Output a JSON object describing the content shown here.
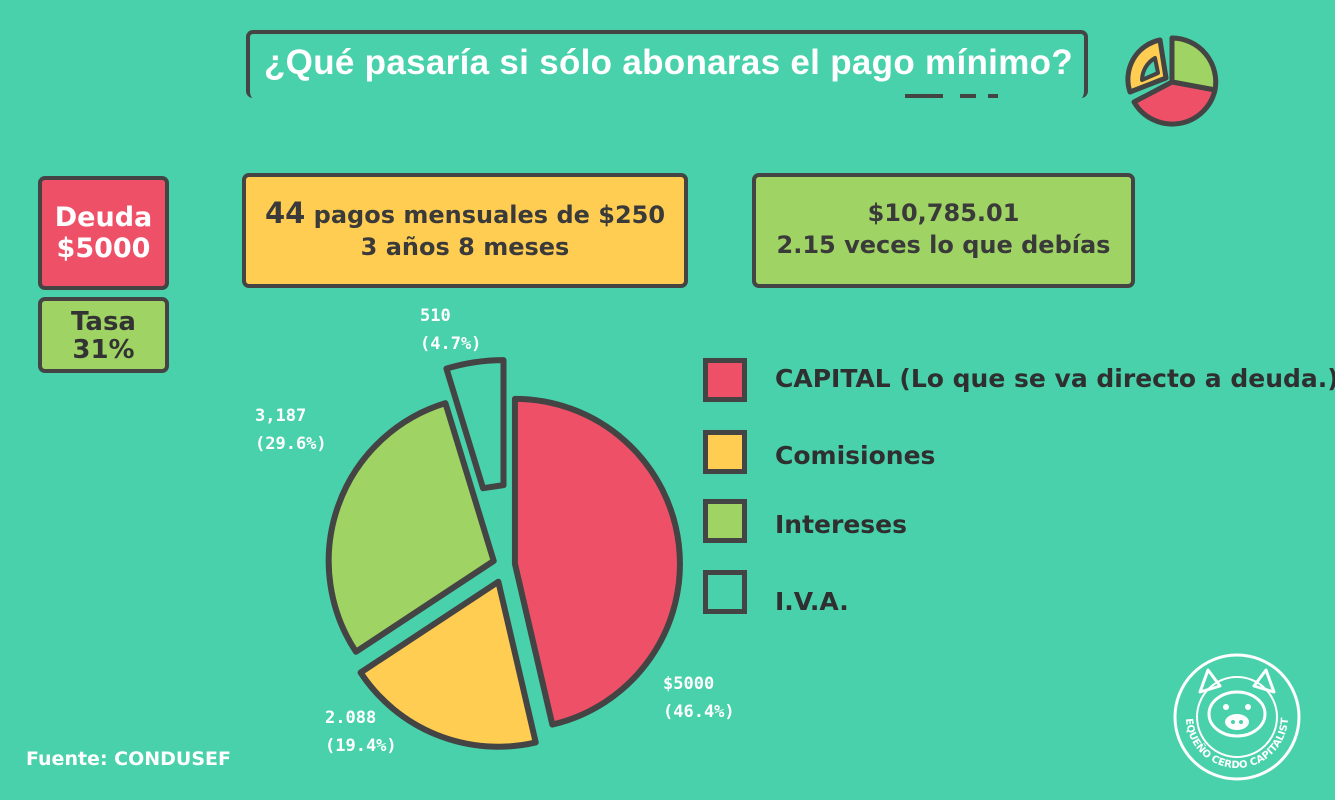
{
  "title": "¿Qué pasaría si sólo abonaras el pago mínimo?",
  "debt": {
    "label": "Deuda",
    "value": "$5000"
  },
  "rate": {
    "label": "Tasa",
    "value": "31%"
  },
  "payments": {
    "count": "44",
    "line1_rest": "pagos mensuales de $250",
    "line2": "3 años 8 meses"
  },
  "total": {
    "line1": "$10,785.01",
    "line2": "2.15 veces lo que debías"
  },
  "source": "Fuente: CONDUSEF",
  "logo_text": "PEQUEÑO CERDO CAPITALISTA",
  "colors": {
    "background": "#48d1ab",
    "capital": "#ee5167",
    "comisiones": "#ffcd51",
    "intereses": "#9fd464",
    "iva": "#48d1ab",
    "outline": "#444444"
  },
  "chart_data": {
    "type": "pie",
    "title": "",
    "slices": [
      {
        "name": "CAPITAL (Lo que se va directo a deuda.)",
        "value": 5000,
        "percent": 46.4,
        "value_label": "$5000",
        "percent_label": "(46.4%)"
      },
      {
        "name": "Comisiones",
        "value": 2088,
        "percent": 19.4,
        "value_label": "2.088",
        "percent_label": "(19.4%)"
      },
      {
        "name": "Intereses",
        "value": 3187,
        "percent": 29.6,
        "value_label": "3,187",
        "percent_label": "(29.6%)"
      },
      {
        "name": "I.V.A.",
        "value": 510,
        "percent": 4.7,
        "value_label": "510",
        "percent_label": "(4.7%)"
      }
    ],
    "legend_position": "right"
  }
}
